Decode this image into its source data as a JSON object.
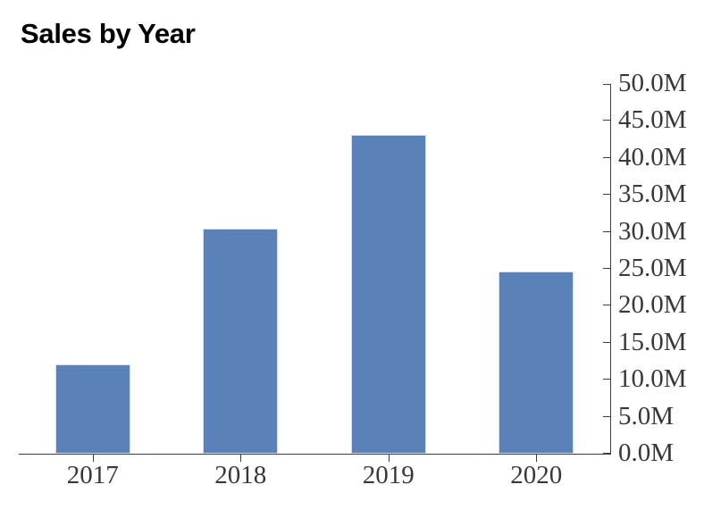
{
  "chart_data": {
    "type": "bar",
    "title": "Sales by Year",
    "categories": [
      "2017",
      "2018",
      "2019",
      "2020"
    ],
    "values_millions": [
      12.1,
      30.5,
      43.1,
      24.6
    ],
    "unit_suffix": "M",
    "xlabel": "",
    "ylabel": "",
    "ylim": [
      0,
      50
    ],
    "ytick_step": 5,
    "ytick_labels": [
      "0.0M",
      "5.0M",
      "10.0M",
      "15.0M",
      "20.0M",
      "25.0M",
      "30.0M",
      "35.0M",
      "40.0M",
      "45.0M",
      "50.0M"
    ],
    "y_axis_side": "right",
    "grid": false,
    "legend": "none",
    "bar_color": "#5A82B9",
    "bar_edge_color": "#d4e0ef",
    "axis_color": "#3d3d3d",
    "tick_label_color": "#383838",
    "title_color": "#000000",
    "background_color": "#ffffff"
  }
}
